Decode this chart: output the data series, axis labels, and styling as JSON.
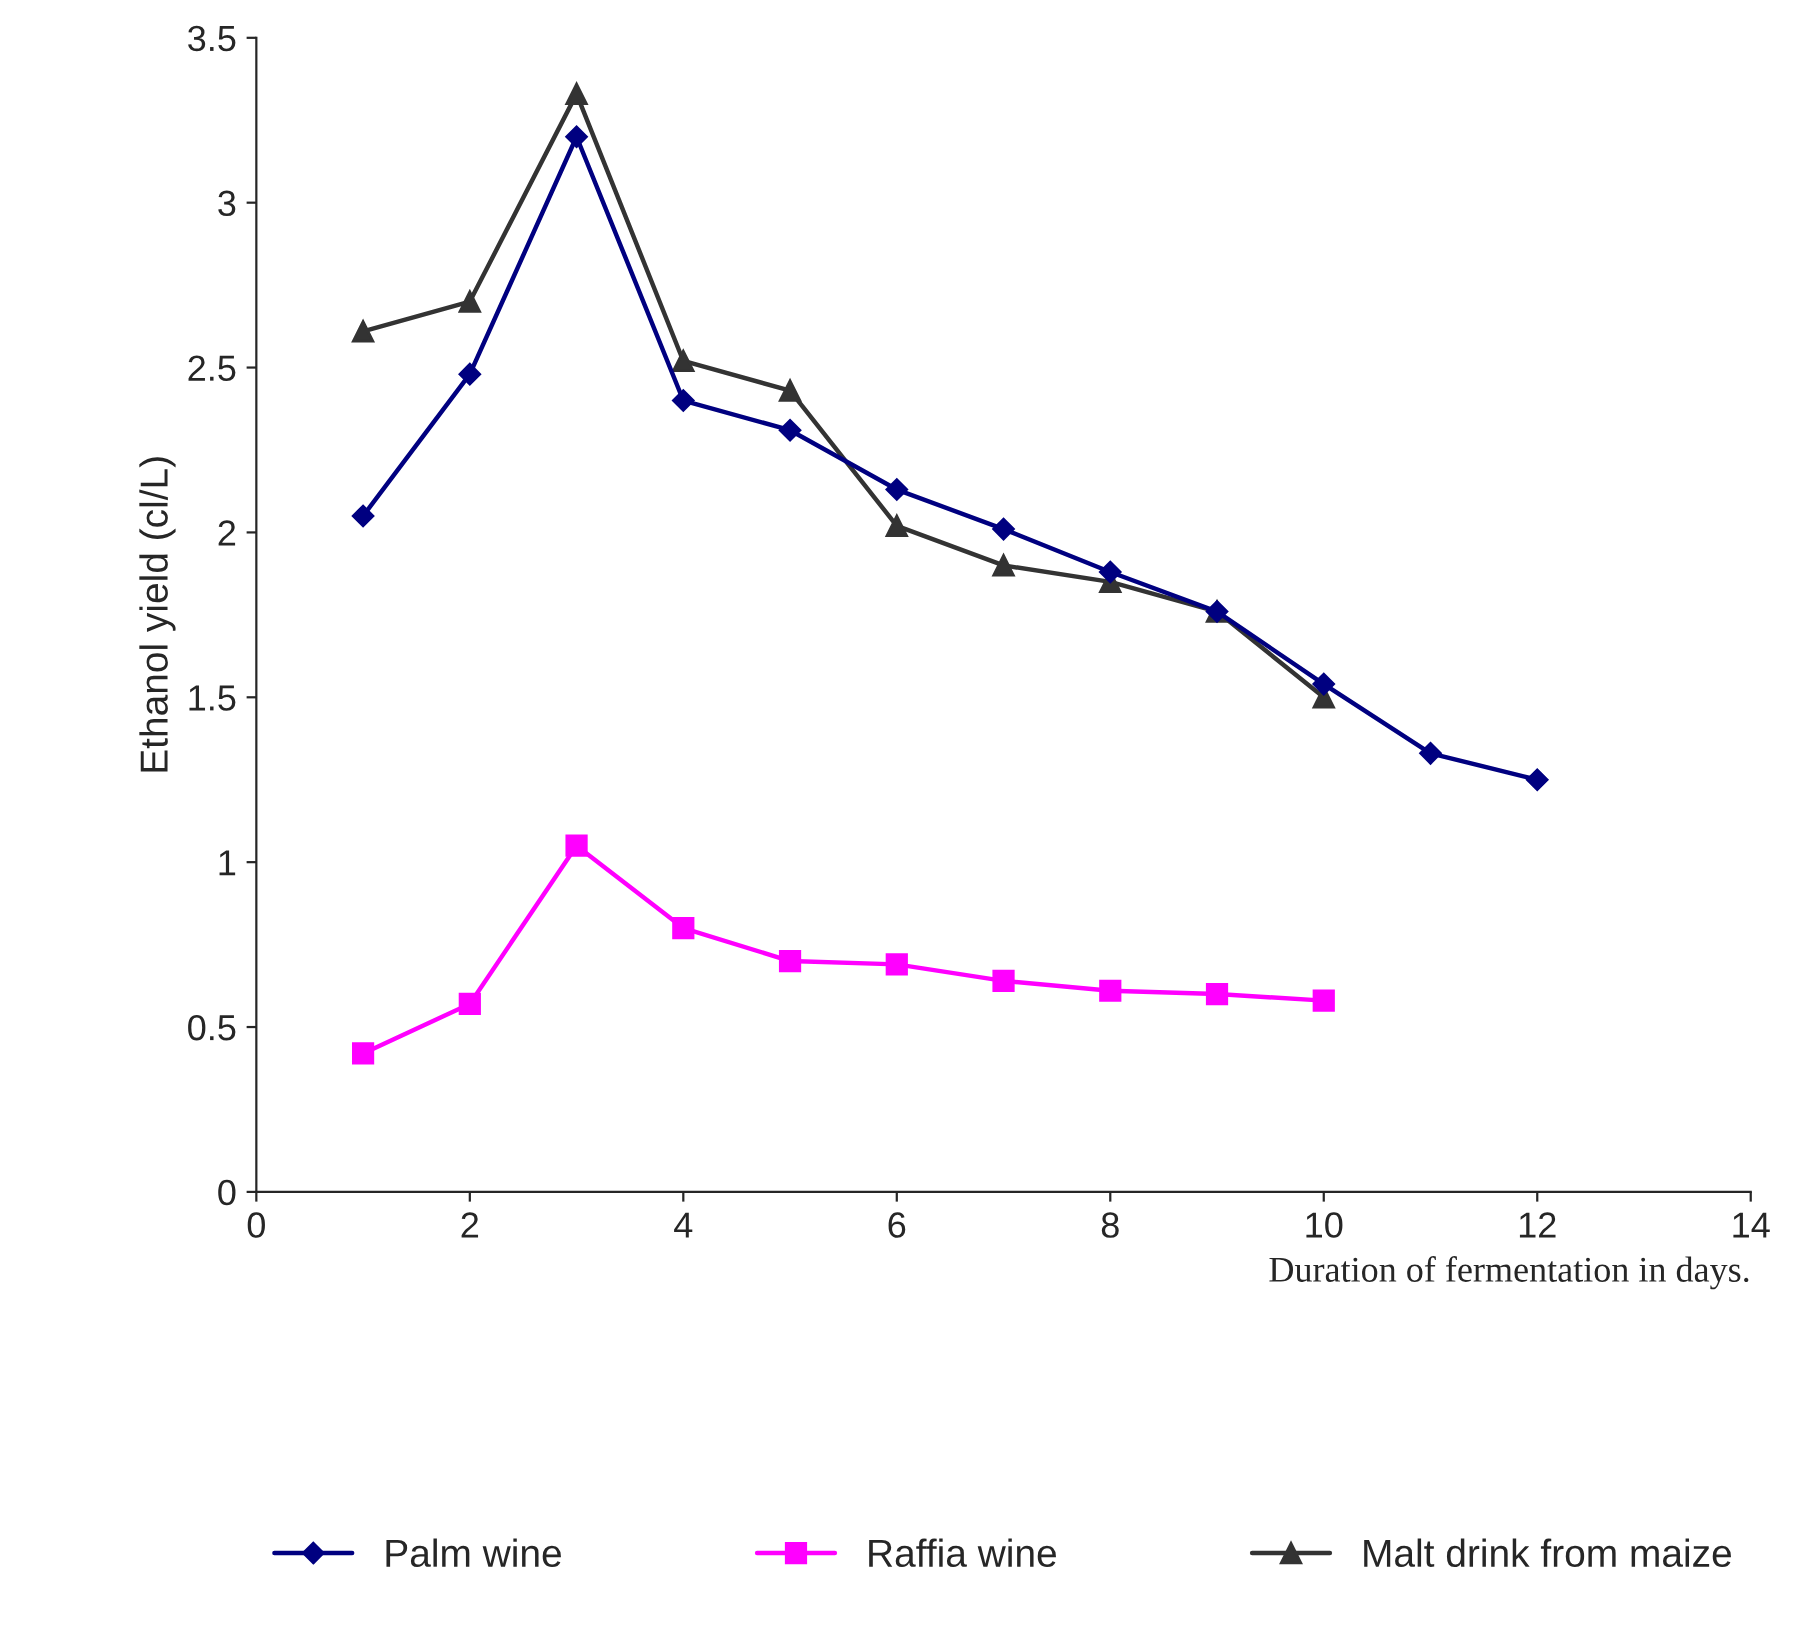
{
  "chart_data": {
    "type": "line",
    "xlabel": "Duration of fermentation in days.",
    "ylabel": "Ethanol yield (cl/L)",
    "xlim": [
      0,
      14
    ],
    "xticks": [
      0,
      2,
      4,
      6,
      8,
      10,
      12,
      14
    ],
    "ylim": [
      0,
      3.5
    ],
    "yticks": [
      0,
      0.5,
      1,
      1.5,
      2,
      2.5,
      3,
      3.5
    ],
    "grid": false,
    "legend": "bottom",
    "series": [
      {
        "name": "Palm wine",
        "color": "#000080",
        "marker": "diamond",
        "x": [
          1,
          2,
          3,
          4,
          5,
          6,
          7,
          8,
          9,
          10,
          11,
          12
        ],
        "values": [
          2.05,
          2.48,
          3.2,
          2.4,
          2.31,
          2.13,
          2.01,
          1.88,
          1.76,
          1.54,
          1.33,
          1.25
        ]
      },
      {
        "name": "Raffia wine",
        "color": "#ff00ff",
        "marker": "square",
        "x": [
          1,
          2,
          3,
          4,
          5,
          6,
          7,
          8,
          9,
          10
        ],
        "values": [
          0.42,
          0.57,
          1.05,
          0.8,
          0.7,
          0.69,
          0.64,
          0.61,
          0.6,
          0.58
        ]
      },
      {
        "name": "Malt drink from maize",
        "color": "#333333",
        "marker": "triangle",
        "x": [
          1,
          2,
          3,
          4,
          5,
          6,
          7,
          8,
          9,
          10
        ],
        "values": [
          2.61,
          2.7,
          3.33,
          2.52,
          2.43,
          2.02,
          1.9,
          1.85,
          1.76,
          1.5
        ]
      }
    ]
  }
}
